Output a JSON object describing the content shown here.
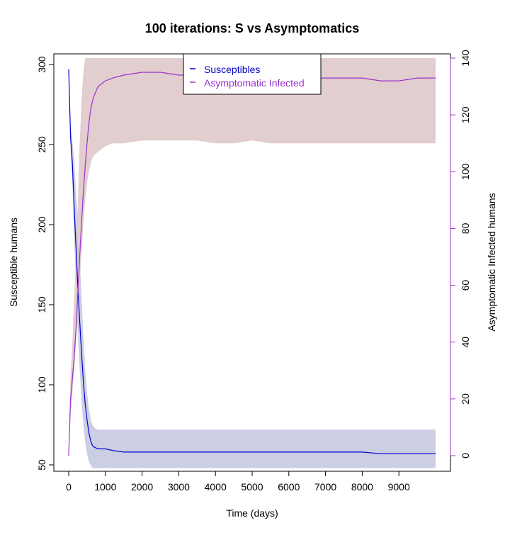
{
  "chart_data": {
    "type": "line",
    "title": "100  iterations: S vs Asymptomatics",
    "xlabel": "Time (days)",
    "ylabel_left": "Susceptible humans",
    "ylabel_right": "Asymptomatic Infected humans",
    "xlim": [
      0,
      10000
    ],
    "xticks": [
      0,
      1000,
      2000,
      3000,
      4000,
      5000,
      6000,
      7000,
      8000,
      9000
    ],
    "ylim_left": [
      50,
      300
    ],
    "yticks_left": [
      50,
      100,
      150,
      200,
      250,
      300
    ],
    "ylim_right": [
      0,
      140
    ],
    "yticks_right": [
      0,
      20,
      40,
      60,
      80,
      100,
      120,
      140
    ],
    "grid": false,
    "legend_position": "top-center",
    "series": [
      {
        "name": "Susceptibles",
        "axis": "left",
        "color": "#0000cd",
        "band_color": "#c7c9e1",
        "x": [
          0,
          50,
          100,
          150,
          200,
          250,
          300,
          350,
          400,
          450,
          500,
          550,
          600,
          650,
          700,
          800,
          900,
          1000,
          1200,
          1500,
          2000,
          2500,
          3000,
          3500,
          4000,
          4500,
          5000,
          5500,
          6000,
          6500,
          7000,
          7500,
          8000,
          8500,
          9000,
          9500,
          10000
        ],
        "y": [
          297,
          255,
          238,
          210,
          185,
          160,
          140,
          120,
          102,
          88,
          78,
          70,
          65,
          62,
          61,
          60,
          60,
          60,
          59,
          58,
          58,
          58,
          58,
          58,
          58,
          58,
          58,
          58,
          58,
          58,
          58,
          58,
          58,
          57,
          57,
          57,
          57
        ],
        "band_low": [
          297,
          248,
          225,
          190,
          160,
          130,
          110,
          90,
          75,
          64,
          57,
          52,
          50,
          48,
          48,
          48,
          48,
          48,
          48,
          48,
          48,
          48,
          48,
          48,
          48,
          48,
          48,
          48,
          48,
          48,
          48,
          48,
          48,
          48,
          48,
          48,
          48
        ],
        "band_high": [
          297,
          262,
          252,
          240,
          220,
          200,
          180,
          155,
          130,
          110,
          95,
          85,
          78,
          75,
          73,
          72,
          72,
          72,
          72,
          72,
          72,
          72,
          72,
          72,
          72,
          72,
          72,
          72,
          72,
          72,
          72,
          72,
          72,
          72,
          72,
          72,
          72
        ]
      },
      {
        "name": "Asymptomatic Infected",
        "axis": "right",
        "color": "#9932cc",
        "band_color": "#dfc8ca",
        "x": [
          0,
          50,
          100,
          150,
          200,
          250,
          300,
          350,
          400,
          450,
          500,
          550,
          600,
          650,
          700,
          800,
          900,
          1000,
          1200,
          1500,
          2000,
          2500,
          3000,
          3500,
          4000,
          4500,
          5000,
          5500,
          6000,
          6500,
          7000,
          7500,
          8000,
          8500,
          9000,
          9500,
          10000
        ],
        "y": [
          0,
          20,
          27,
          35,
          45,
          58,
          70,
          82,
          93,
          102,
          110,
          117,
          122,
          125,
          127,
          130,
          131,
          132,
          133,
          134,
          135,
          135,
          134,
          134,
          133,
          133,
          134,
          133,
          133,
          133,
          133,
          133,
          133,
          132,
          132,
          133,
          133
        ],
        "band_low": [
          0,
          14,
          22,
          30,
          40,
          50,
          60,
          72,
          82,
          90,
          96,
          100,
          103,
          105,
          106,
          107,
          108,
          109,
          110,
          110,
          111,
          111,
          111,
          111,
          110,
          110,
          111,
          110,
          110,
          110,
          110,
          110,
          110,
          110,
          110,
          110,
          110
        ],
        "band_high": [
          0,
          28,
          40,
          55,
          70,
          90,
          110,
          125,
          135,
          140,
          140,
          140,
          140,
          140,
          140,
          140,
          140,
          140,
          140,
          140,
          140,
          140,
          140,
          140,
          140,
          140,
          140,
          140,
          140,
          140,
          140,
          140,
          140,
          140,
          140,
          140,
          140
        ]
      }
    ]
  }
}
